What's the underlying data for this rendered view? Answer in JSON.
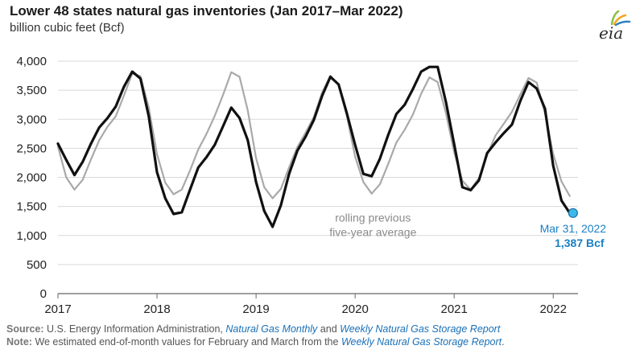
{
  "header": {
    "title": "Lower 48 states natural gas inventories (Jan 2017–Mar 2022)",
    "subtitle": "billion cubic feet (Bcf)",
    "logo_text": "eia"
  },
  "footer": {
    "source_label": "Source:",
    "source_text": "U.S. Energy Information Administration,",
    "source_link1": "Natural Gas Monthly",
    "source_and": "and",
    "source_link2": "Weekly Natural Gas Storage Report",
    "note_label": "Note:",
    "note_text": "We estimated end-of-month values for February and March from the",
    "note_link": "Weekly Natural Gas Storage Report",
    "note_end": "."
  },
  "colors": {
    "series_main": "#111111",
    "series_avg": "#a9a9a9",
    "callout": "#1a80c4",
    "gridline": "#d9d9d9"
  },
  "chart_data": {
    "type": "line",
    "title": "Lower 48 states natural gas inventories (Jan 2017–Mar 2022)",
    "ylabel": "billion cubic feet (Bcf)",
    "xlim": [
      2017,
      2022.25
    ],
    "ylim": [
      0,
      4000
    ],
    "yticks": [
      0,
      500,
      1000,
      1500,
      2000,
      2500,
      3000,
      3500,
      4000
    ],
    "ytick_labels": [
      "0",
      "500",
      "1,000",
      "1,500",
      "2,000",
      "2,500",
      "3,000",
      "3,500",
      "4,000"
    ],
    "xticks": [
      2017,
      2018,
      2019,
      2020,
      2021,
      2022
    ],
    "xtick_labels": [
      "2017",
      "2018",
      "2019",
      "2020",
      "2021",
      "2022"
    ],
    "grid": true,
    "series": [
      {
        "key": "inventory",
        "values": [
          2580,
          2300,
          2040,
          2270,
          2580,
          2860,
          3020,
          3220,
          3560,
          3820,
          3700,
          3050,
          2090,
          1640,
          1370,
          1400,
          1790,
          2170,
          2350,
          2560,
          2880,
          3200,
          3020,
          2640,
          1920,
          1420,
          1150,
          1520,
          2060,
          2460,
          2700,
          2990,
          3400,
          3730,
          3600,
          3100,
          2560,
          2060,
          2020,
          2320,
          2730,
          3090,
          3250,
          3520,
          3820,
          3900,
          3900,
          3300,
          2570,
          1830,
          1780,
          1950,
          2420,
          2600,
          2760,
          2910,
          3310,
          3640,
          3530,
          3180,
          2200,
          1600,
          1387
        ]
      },
      {
        "key": "five_year_avg",
        "values": [
          2530,
          2000,
          1790,
          1960,
          2310,
          2640,
          2870,
          3050,
          3410,
          3790,
          3740,
          3200,
          2400,
          1910,
          1710,
          1790,
          2120,
          2480,
          2750,
          3060,
          3420,
          3810,
          3730,
          3150,
          2330,
          1830,
          1640,
          1800,
          2170,
          2520,
          2770,
          3040,
          3460,
          3750,
          3590,
          3060,
          2360,
          1920,
          1720,
          1880,
          2230,
          2600,
          2820,
          3080,
          3440,
          3720,
          3640,
          3110,
          2430,
          1940,
          1790,
          1990,
          2390,
          2720,
          2920,
          3130,
          3420,
          3710,
          3630,
          3100,
          2400,
          1930,
          1680
        ]
      }
    ],
    "annotation": {
      "line1": "rolling previous",
      "line2": "five-year average"
    },
    "callout": {
      "x": 2022.2,
      "y": 1387,
      "date_label": "Mar 31, 2022",
      "value_label": "1,387 Bcf"
    }
  }
}
